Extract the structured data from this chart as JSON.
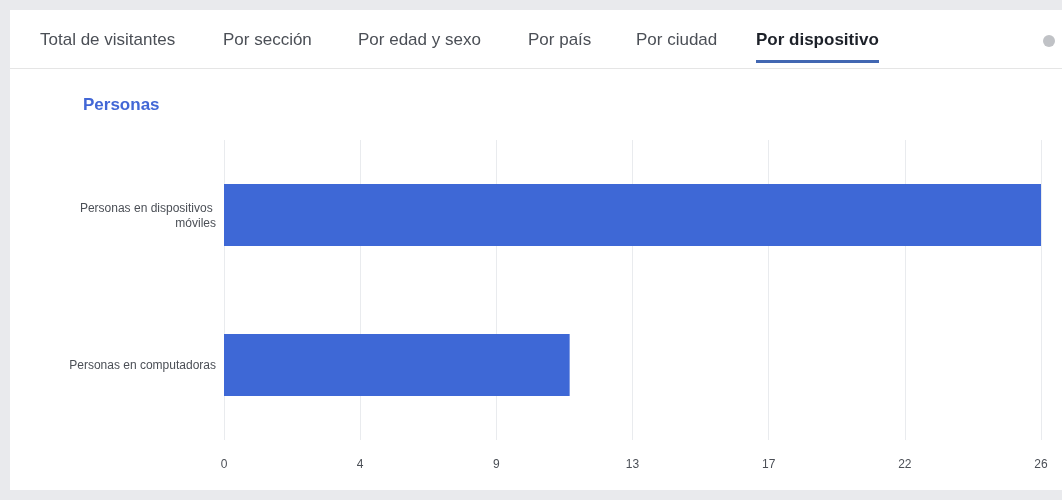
{
  "chart_data": {
    "type": "bar",
    "orientation": "horizontal",
    "title": "Personas",
    "annotations": [
      "Total de visitantes",
      "Por sección",
      "Por edad y sexo",
      "Por país",
      "Por ciudad",
      "Por dispositivo"
    ],
    "categories": [
      "Personas en dispositivos móviles",
      "Personas en computadoras"
    ],
    "values": [
      26,
      11
    ],
    "color": "#3e68d6",
    "xlim": [
      0,
      26
    ],
    "xticks": [
      0,
      {
        "value": 4.333,
        "label": "4"
      },
      {
        "value": 8.667,
        "label": "9"
      },
      13,
      {
        "value": 17.333,
        "label": "17"
      },
      {
        "value": 21.667,
        "label": "22"
      },
      26
    ],
    "grid": "x"
  }
}
